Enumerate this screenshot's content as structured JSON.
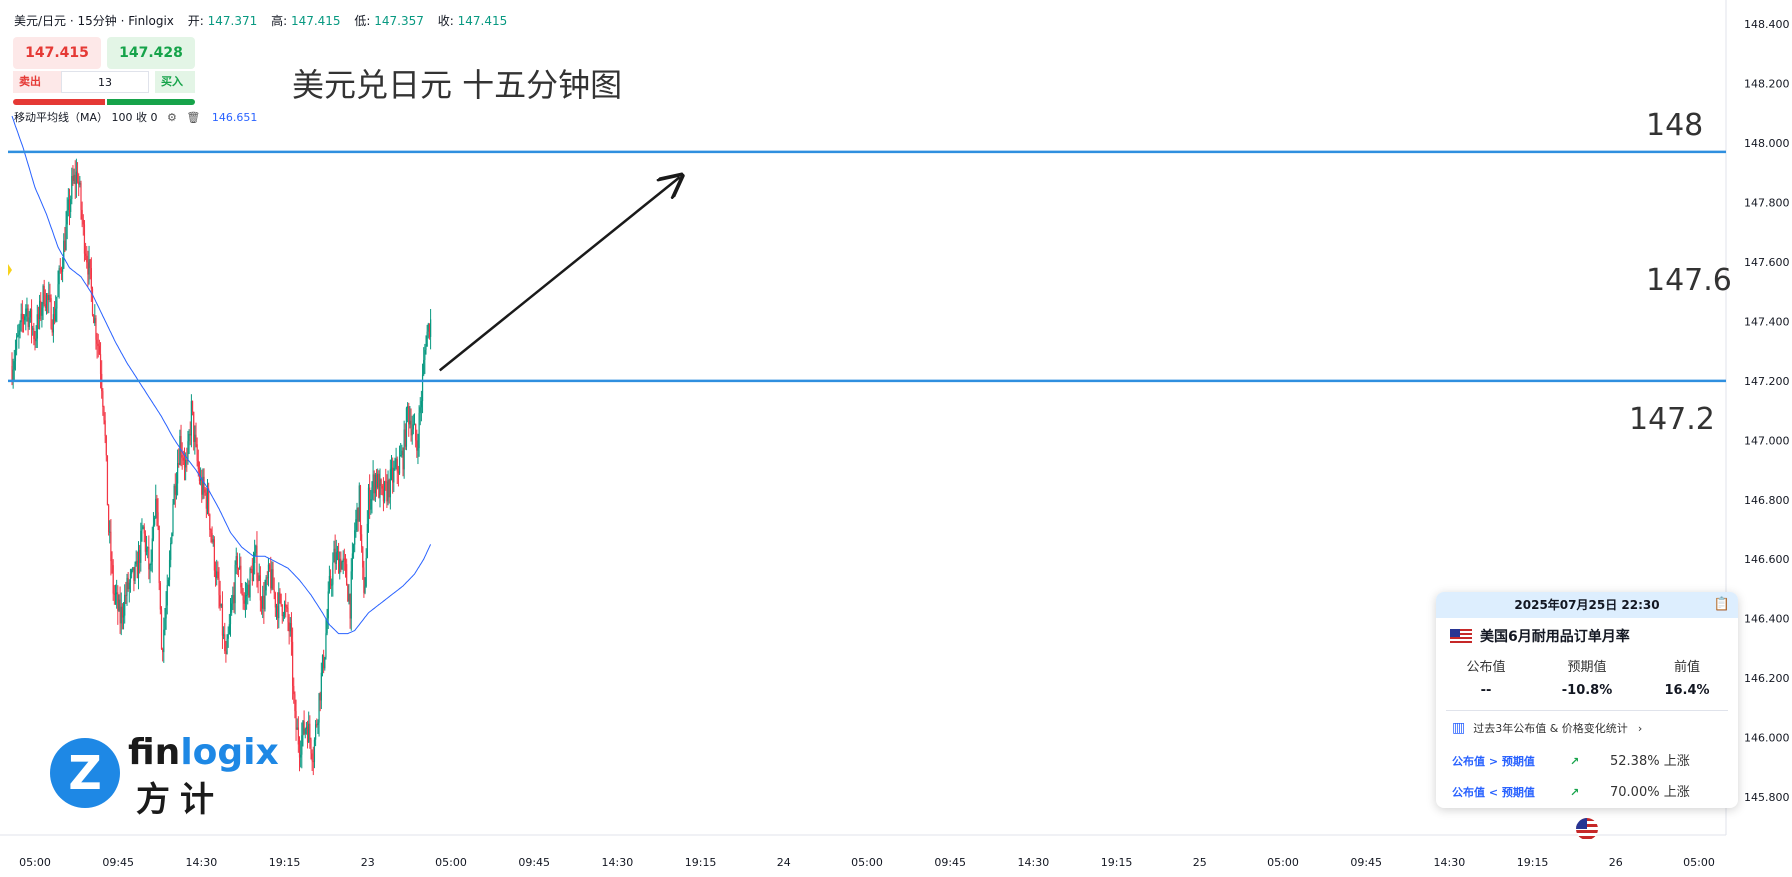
{
  "header": {
    "symbol": "美元/日元 · 15分钟 · Finlogix",
    "open_label": "开:",
    "open": "147.371",
    "high_label": "高:",
    "high": "147.415",
    "low_label": "低:",
    "low": "147.357",
    "close_label": "收:",
    "close": "147.415"
  },
  "trade_panel": {
    "sell_price": "147.415",
    "buy_price": "147.428",
    "sell_label": "卖出",
    "buy_label": "买入",
    "quantity": "13"
  },
  "indicator": {
    "name": "移动平均线（MA）",
    "params": "100 收 0",
    "value": "146.651"
  },
  "annotation": {
    "title": "美元兑日元 十五分钟图",
    "level_148": "148",
    "level_1476": "147.6",
    "level_1472": "147.2"
  },
  "brand": {
    "logo_en_a": "fin",
    "logo_en_b": "logix",
    "logo_zh": "方计",
    "logo_mark": "Z"
  },
  "event_card": {
    "datetime": "2025年07月25日 22:30",
    "event": "美国6月耐用品订单月率",
    "col_actual": "公布值",
    "col_forecast": "预期值",
    "col_previous": "前值",
    "actual": "--",
    "forecast": "-10.8%",
    "previous": "16.4%",
    "stats_link": "过去3年公布值 & 价格变化统计",
    "row1_cond": "公布值 > 预期值",
    "row1_value": "52.38% 上涨",
    "row2_cond": "公布值 < 预期值",
    "row2_value": "70.00% 上涨"
  },
  "chart_data": {
    "type": "candlestick",
    "ylim": [
      145.74,
      148.42
    ],
    "y_ticks": [
      "148.400",
      "148.200",
      "148.000",
      "147.800",
      "147.600",
      "147.400",
      "147.200",
      "147.000",
      "146.800",
      "146.600",
      "146.400",
      "146.200",
      "146.000",
      "145.800"
    ],
    "x_ticks": [
      "05:00",
      "09:45",
      "14:30",
      "19:15",
      "23",
      "05:00",
      "09:45",
      "14:30",
      "19:15",
      "24",
      "05:00",
      "09:45",
      "14:30",
      "19:15",
      "25",
      "05:00",
      "09:45",
      "14:30",
      "19:15",
      "26",
      "05:00"
    ],
    "horizontal_lines": [
      147.97,
      147.2
    ],
    "ma_label": "MA 100",
    "anchors": [
      [
        0,
        147.25
      ],
      [
        12,
        147.45
      ],
      [
        20,
        147.35
      ],
      [
        28,
        147.5
      ],
      [
        36,
        147.4
      ],
      [
        45,
        147.65
      ],
      [
        52,
        147.85
      ],
      [
        57,
        147.9
      ],
      [
        62,
        147.7
      ],
      [
        66,
        147.6
      ],
      [
        72,
        147.4
      ],
      [
        76,
        147.3
      ],
      [
        80,
        147.1
      ],
      [
        84,
        146.7
      ],
      [
        88,
        146.5
      ],
      [
        94,
        146.4
      ],
      [
        100,
        146.5
      ],
      [
        108,
        146.55
      ],
      [
        114,
        146.7
      ],
      [
        120,
        146.55
      ],
      [
        126,
        146.8
      ],
      [
        130,
        146.3
      ],
      [
        136,
        146.5
      ],
      [
        140,
        146.8
      ],
      [
        146,
        147.0
      ],
      [
        152,
        146.9
      ],
      [
        156,
        147.1
      ],
      [
        160,
        146.95
      ],
      [
        164,
        146.85
      ],
      [
        170,
        146.8
      ],
      [
        176,
        146.6
      ],
      [
        182,
        146.4
      ],
      [
        186,
        146.25
      ],
      [
        190,
        146.4
      ],
      [
        196,
        146.6
      ],
      [
        202,
        146.45
      ],
      [
        208,
        146.55
      ],
      [
        212,
        146.6
      ],
      [
        218,
        146.45
      ],
      [
        224,
        146.55
      ],
      [
        230,
        146.45
      ],
      [
        236,
        146.45
      ],
      [
        242,
        146.35
      ],
      [
        246,
        146.05
      ],
      [
        250,
        145.98
      ],
      [
        256,
        146.05
      ],
      [
        262,
        145.95
      ],
      [
        266,
        146.1
      ],
      [
        272,
        146.3
      ],
      [
        276,
        146.5
      ],
      [
        280,
        146.6
      ],
      [
        286,
        146.6
      ],
      [
        290,
        146.55
      ],
      [
        294,
        146.45
      ],
      [
        298,
        146.7
      ],
      [
        302,
        146.8
      ],
      [
        306,
        146.45
      ],
      [
        310,
        146.8
      ],
      [
        316,
        146.88
      ],
      [
        322,
        146.8
      ],
      [
        328,
        146.85
      ],
      [
        334,
        146.9
      ],
      [
        340,
        146.95
      ],
      [
        344,
        147.1
      ],
      [
        348,
        147.05
      ],
      [
        352,
        146.98
      ],
      [
        356,
        147.15
      ],
      [
        360,
        147.35
      ],
      [
        364,
        147.4
      ]
    ],
    "ma_anchors": [
      [
        0,
        148.09
      ],
      [
        10,
        147.98
      ],
      [
        20,
        147.85
      ],
      [
        30,
        147.76
      ],
      [
        40,
        147.65
      ],
      [
        50,
        147.58
      ],
      [
        60,
        147.55
      ],
      [
        70,
        147.49
      ],
      [
        80,
        147.41
      ],
      [
        90,
        147.33
      ],
      [
        100,
        147.26
      ],
      [
        110,
        147.2
      ],
      [
        120,
        147.14
      ],
      [
        130,
        147.08
      ],
      [
        140,
        147.01
      ],
      [
        150,
        146.95
      ],
      [
        160,
        146.9
      ],
      [
        170,
        146.84
      ],
      [
        180,
        146.77
      ],
      [
        190,
        146.69
      ],
      [
        200,
        146.64
      ],
      [
        210,
        146.61
      ],
      [
        220,
        146.61
      ],
      [
        230,
        146.59
      ],
      [
        240,
        146.57
      ],
      [
        250,
        146.53
      ],
      [
        260,
        146.48
      ],
      [
        270,
        146.42
      ],
      [
        276,
        146.38
      ],
      [
        284,
        146.35
      ],
      [
        292,
        146.35
      ],
      [
        298,
        146.36
      ],
      [
        302,
        146.38
      ],
      [
        310,
        146.42
      ],
      [
        320,
        146.45
      ],
      [
        330,
        146.48
      ],
      [
        340,
        146.51
      ],
      [
        350,
        146.55
      ],
      [
        358,
        146.6
      ],
      [
        364,
        146.65
      ]
    ],
    "candle_count": 365
  },
  "colors": {
    "up": "#089981",
    "down": "#f23645",
    "ma": "#2962ff",
    "level": "#2f8fdf",
    "arrow": "#1a1a1a"
  }
}
